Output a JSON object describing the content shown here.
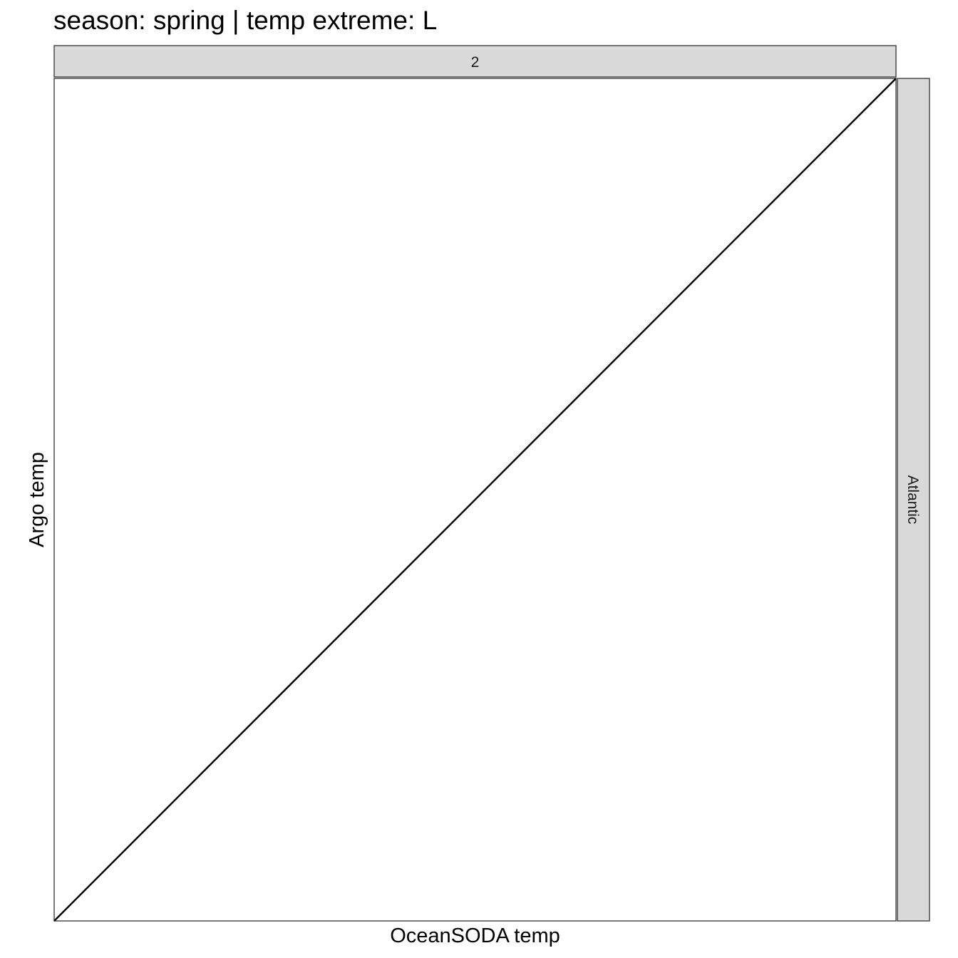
{
  "chart_data": {
    "type": "line",
    "title": "season: spring | temp extreme: L",
    "xlabel": "OceanSODA temp",
    "ylabel": "Argo temp",
    "facet_col_label": "2",
    "facet_row_label": "Atlantic",
    "series": [
      {
        "values": []
      }
    ],
    "reference_line": {
      "kind": "identity",
      "slope": 1,
      "intercept": 0,
      "color": "#000000"
    },
    "grid": false,
    "axis_ticks": false,
    "panel_border_color": "#333333",
    "strip_fill": "#d9d9d9"
  }
}
